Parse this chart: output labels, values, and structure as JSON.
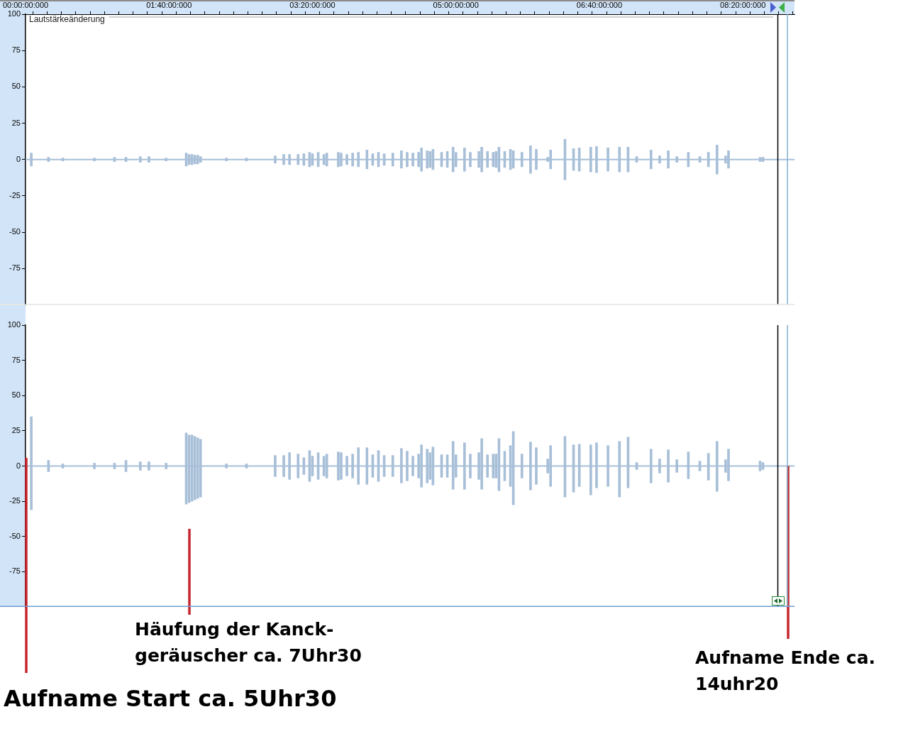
{
  "chart_data": [
    {
      "type": "bar",
      "color": "#a8bfd8",
      "categories": [
        "00:00:00:000",
        null,
        null,
        null,
        null,
        null,
        null,
        null,
        null,
        null,
        null,
        null,
        null,
        null,
        null,
        null,
        null,
        null,
        null,
        null,
        null,
        null,
        null,
        null,
        null,
        null,
        null,
        null,
        null,
        null,
        null,
        null,
        null,
        null,
        null,
        null,
        null,
        null,
        null,
        null,
        null,
        null,
        null,
        null,
        null,
        null,
        null,
        null,
        null,
        null,
        "01:40:00:000",
        null,
        null,
        null,
        null,
        null,
        null,
        null,
        null,
        null,
        null,
        null,
        null,
        null,
        null,
        null,
        null,
        null,
        null,
        null,
        null,
        null,
        null,
        null,
        null,
        null,
        null,
        null,
        null,
        null,
        null,
        null,
        null,
        null,
        null,
        null,
        null,
        null,
        null,
        null,
        null,
        null,
        null,
        null,
        null,
        null,
        null,
        null,
        null,
        null,
        "03:20:00:000",
        null,
        null,
        null,
        null,
        null,
        null,
        null,
        null,
        null,
        null,
        null,
        null,
        null,
        null,
        null,
        null,
        null,
        null,
        null,
        null,
        null,
        null,
        null,
        null,
        null,
        null,
        null,
        null,
        null,
        null,
        null,
        null,
        null,
        null,
        null,
        null,
        null,
        null,
        null,
        null,
        null,
        null,
        null,
        null,
        null,
        null,
        null,
        null,
        null,
        "05:00:00:000",
        null,
        null,
        null,
        null,
        null,
        null,
        null,
        null,
        null,
        null,
        null,
        null,
        null,
        null,
        null,
        null,
        null,
        null,
        null,
        null,
        null,
        null,
        null,
        null,
        null,
        null,
        null,
        null,
        null,
        null,
        null,
        null,
        null,
        null,
        null,
        null,
        null,
        null,
        null,
        null,
        null,
        null,
        null,
        null,
        null,
        null,
        null,
        null,
        null,
        "06:40:00:000",
        null,
        null,
        null,
        null,
        null,
        null,
        null,
        null,
        null,
        null,
        null,
        null,
        null,
        null,
        null,
        null,
        null,
        null,
        null,
        null,
        null,
        null,
        null,
        null,
        null,
        null,
        null,
        null,
        null,
        null,
        null,
        null,
        null,
        null,
        null,
        null,
        null,
        null,
        null,
        null,
        null,
        null,
        null,
        null,
        null,
        null,
        null,
        null,
        null,
        "08:20:00:000",
        null,
        null,
        null,
        null,
        null,
        null,
        null,
        null,
        null,
        null,
        null,
        null,
        null,
        null,
        null,
        null,
        null,
        null
      ],
      "base": [
        null,
        null,
        -4.5,
        null,
        null,
        null,
        null,
        null,
        -1.5,
        null,
        null,
        null,
        null,
        -1,
        null,
        null,
        null,
        null,
        null,
        null,
        null,
        null,
        null,
        null,
        -1,
        null,
        null,
        null,
        null,
        null,
        null,
        -1.5,
        null,
        null,
        null,
        -1.5,
        null,
        null,
        null,
        null,
        -2,
        null,
        null,
        -2,
        null,
        null,
        null,
        null,
        null,
        -1,
        null,
        null,
        null,
        null,
        null,
        null,
        -4.5,
        -3.5,
        -3.5,
        -3,
        -3,
        -2,
        null,
        null,
        null,
        null,
        null,
        null,
        null,
        null,
        -1,
        null,
        null,
        null,
        null,
        null,
        null,
        -1,
        null,
        null,
        null,
        null,
        null,
        null,
        null,
        null,
        null,
        -2.5,
        null,
        null,
        -3.5,
        null,
        -3.5,
        null,
        null,
        -3.5,
        null,
        -4,
        null,
        -5,
        -4,
        null,
        -5,
        null,
        -3.5,
        -4.5,
        null,
        null,
        null,
        -5,
        -4.5,
        null,
        -3.5,
        null,
        -4.5,
        null,
        -5,
        null,
        null,
        -6.5,
        null,
        -4,
        null,
        -5,
        null,
        -4,
        null,
        null,
        -4.5,
        null,
        null,
        -6,
        null,
        -5,
        null,
        -4.5,
        null,
        -5,
        -8,
        null,
        -6,
        -5.5,
        -7,
        null,
        null,
        -5,
        null,
        -5.5,
        null,
        -8.5,
        -5,
        null,
        null,
        -8,
        null,
        -5,
        null,
        null,
        -5.5,
        -8.5,
        null,
        -5.5,
        null,
        -5,
        -5.5,
        -8.5,
        null,
        -5.5,
        null,
        -7,
        -6,
        null,
        null,
        -5,
        null,
        null,
        -9.5,
        null,
        -7,
        null,
        null,
        null,
        -1.5,
        -6.5,
        null,
        null,
        null,
        null,
        -14,
        null,
        null,
        -7.5,
        null,
        -8,
        null,
        null,
        null,
        -8.5,
        null,
        -9,
        null,
        null,
        null,
        -8,
        null,
        null,
        null,
        -8.5,
        null,
        null,
        -8.5,
        null,
        null,
        -2,
        null,
        null,
        null,
        null,
        -6.5,
        null,
        null,
        -2.5,
        null,
        null,
        -6,
        null,
        null,
        -2,
        null,
        null,
        null,
        -5,
        null,
        null,
        null,
        -2,
        null,
        null,
        -5,
        null,
        null,
        -10,
        null,
        null,
        -2.5,
        -6,
        null,
        null,
        null,
        null,
        null,
        null,
        null,
        null,
        null,
        null,
        -1.5,
        -1.5,
        null,
        null,
        null,
        null,
        null,
        null,
        null,
        null,
        null,
        null,
        null
      ],
      "values": [
        null,
        null,
        9,
        null,
        null,
        null,
        null,
        null,
        3,
        null,
        null,
        null,
        null,
        2,
        null,
        null,
        null,
        null,
        null,
        null,
        null,
        null,
        null,
        null,
        2,
        null,
        null,
        null,
        null,
        null,
        null,
        3,
        null,
        null,
        null,
        3,
        null,
        null,
        null,
        null,
        4,
        null,
        null,
        4,
        null,
        null,
        null,
        null,
        null,
        2,
        null,
        null,
        null,
        null,
        null,
        null,
        9,
        7,
        7,
        6,
        6,
        4,
        null,
        null,
        null,
        null,
        null,
        null,
        null,
        null,
        2,
        null,
        null,
        null,
        null,
        null,
        null,
        2,
        null,
        null,
        null,
        null,
        null,
        null,
        null,
        null,
        null,
        5,
        null,
        null,
        7,
        null,
        7,
        null,
        null,
        7,
        null,
        8,
        null,
        10,
        8,
        null,
        10,
        null,
        7,
        9,
        null,
        null,
        null,
        10,
        9,
        null,
        7,
        null,
        9,
        null,
        10,
        null,
        null,
        13,
        null,
        8,
        null,
        10,
        null,
        8,
        null,
        null,
        9,
        null,
        null,
        12,
        null,
        10,
        null,
        9,
        null,
        10,
        16,
        null,
        12,
        11,
        14,
        null,
        null,
        10,
        null,
        11,
        null,
        17,
        10,
        null,
        null,
        16,
        null,
        10,
        null,
        null,
        11,
        17,
        null,
        11,
        null,
        10,
        11,
        17,
        null,
        11,
        null,
        14,
        12,
        null,
        null,
        10,
        null,
        null,
        19,
        null,
        14,
        null,
        null,
        null,
        3,
        13,
        null,
        null,
        null,
        null,
        28,
        null,
        null,
        15,
        null,
        16,
        null,
        null,
        null,
        17,
        null,
        18,
        null,
        null,
        null,
        16,
        null,
        null,
        null,
        17,
        null,
        null,
        17,
        null,
        null,
        4,
        null,
        null,
        null,
        null,
        13,
        null,
        null,
        5,
        null,
        null,
        12,
        null,
        null,
        4,
        null,
        null,
        null,
        10,
        null,
        null,
        null,
        4,
        null,
        null,
        10,
        null,
        null,
        20,
        null,
        null,
        5,
        12,
        null,
        null,
        null,
        null,
        null,
        null,
        null,
        null,
        null,
        null,
        3,
        3,
        null,
        null,
        null,
        null,
        null,
        null,
        null,
        null,
        null,
        null,
        null
      ],
      "ylim": [
        -100,
        100
      ],
      "yticks": [
        100,
        75,
        50,
        25,
        0,
        -25,
        -50,
        -75
      ],
      "ref_lines": [
        {
          "axis": "y",
          "value": 0,
          "color": "#a8bfd8"
        },
        {
          "axis": "y",
          "value": 98,
          "label": "Lautstärkeänderung",
          "color": "#d0d0d0"
        }
      ]
    },
    {
      "type": "bar",
      "color": "#a8bfd8",
      "tick_labels": "y",
      "categories": [
        null,
        null,
        null,
        null,
        null,
        null,
        null,
        null,
        null,
        null,
        null,
        null,
        null,
        null,
        null,
        null,
        null,
        null,
        null,
        null,
        null,
        null,
        null,
        null,
        null,
        null,
        null,
        null,
        null,
        null,
        null,
        null,
        null,
        null,
        null,
        null,
        null,
        null,
        null,
        null,
        null,
        null,
        null,
        null,
        null,
        null,
        null,
        null,
        null,
        null,
        null,
        null,
        null,
        null,
        null,
        null,
        null,
        null,
        null,
        null,
        null,
        null,
        null,
        null,
        null,
        null,
        null,
        null,
        null,
        null,
        null,
        null,
        null,
        null,
        null,
        null,
        null,
        null,
        null,
        null,
        null,
        null,
        null,
        null,
        null,
        null,
        null,
        null,
        null,
        null,
        null,
        null,
        null,
        null,
        null,
        null,
        null,
        null,
        null,
        null,
        null,
        null,
        null,
        null,
        null,
        null,
        null,
        null,
        null,
        null,
        null,
        null,
        null,
        null,
        null,
        null,
        null,
        null,
        null,
        null,
        null,
        null,
        null,
        null,
        null,
        null,
        null,
        null,
        null,
        null,
        null,
        null,
        null,
        null,
        null,
        null,
        null,
        null,
        null,
        null,
        null,
        null,
        null,
        null,
        null,
        null,
        null,
        null,
        null,
        null,
        null,
        null,
        null,
        null,
        null,
        null,
        null,
        null,
        null,
        null,
        null,
        null,
        null,
        null,
        null,
        null,
        null,
        null,
        null,
        null,
        null,
        null,
        null,
        null,
        null,
        null,
        null,
        null,
        null,
        null,
        null,
        null,
        null,
        null,
        null,
        null,
        null,
        null,
        null,
        null,
        null,
        null,
        null,
        null,
        null,
        null,
        null,
        null,
        null,
        null,
        null,
        null,
        null,
        null,
        null,
        null,
        null,
        null,
        null,
        null,
        null,
        null,
        null,
        null,
        null,
        null,
        null,
        null,
        null,
        null,
        null,
        null,
        null,
        null,
        null,
        null,
        null,
        null,
        null,
        null,
        null,
        null,
        null,
        null,
        null,
        null,
        null,
        null,
        null,
        null,
        null,
        null,
        null,
        null,
        null,
        null,
        null,
        null,
        null,
        null,
        null,
        null,
        null,
        null,
        null,
        null,
        null,
        null,
        null,
        null,
        null,
        null,
        null,
        null,
        null,
        null,
        null,
        null,
        null
      ],
      "base": [
        null,
        null,
        -31,
        null,
        null,
        null,
        null,
        null,
        -4,
        null,
        null,
        null,
        null,
        -1.5,
        null,
        null,
        null,
        null,
        null,
        null,
        null,
        null,
        null,
        null,
        -2,
        null,
        null,
        null,
        null,
        null,
        null,
        -2,
        null,
        null,
        null,
        -4,
        null,
        null,
        null,
        null,
        -3,
        null,
        null,
        -3,
        null,
        null,
        null,
        null,
        null,
        -2,
        null,
        null,
        null,
        null,
        null,
        null,
        -27,
        -26,
        -25,
        -24,
        -23,
        -22,
        null,
        null,
        null,
        null,
        null,
        null,
        null,
        null,
        -1.5,
        null,
        null,
        null,
        null,
        null,
        null,
        -1.5,
        null,
        null,
        null,
        null,
        null,
        null,
        null,
        null,
        null,
        -7.5,
        null,
        null,
        -7.5,
        null,
        -9.5,
        null,
        null,
        -8.5,
        null,
        -6,
        null,
        -11,
        -7,
        null,
        -9.5,
        null,
        -7,
        -8.5,
        null,
        null,
        null,
        -10,
        -9.5,
        null,
        -7,
        null,
        -8.5,
        null,
        -13,
        null,
        null,
        -13,
        null,
        -8,
        null,
        -11,
        null,
        -7.5,
        null,
        null,
        -7.5,
        null,
        null,
        -12,
        null,
        -10.5,
        null,
        -7,
        null,
        -8.5,
        -15,
        null,
        -12,
        -9.5,
        -13.5,
        null,
        null,
        -8,
        null,
        -8,
        null,
        -16.5,
        -8,
        null,
        null,
        -16.5,
        null,
        -8.5,
        null,
        null,
        -9.5,
        -16.5,
        null,
        -8,
        null,
        -8.5,
        -8.5,
        -17.5,
        null,
        -10.5,
        null,
        -14.5,
        -27.5,
        null,
        null,
        -8.5,
        null,
        null,
        -17,
        null,
        -13,
        null,
        null,
        null,
        -5,
        -14.5,
        null,
        null,
        null,
        null,
        -22,
        null,
        null,
        -18.5,
        null,
        -14.5,
        null,
        null,
        null,
        -20.5,
        null,
        -15.5,
        null,
        null,
        null,
        -14.5,
        null,
        null,
        null,
        -22,
        null,
        null,
        -15.5,
        null,
        null,
        -2.5,
        null,
        null,
        null,
        null,
        -12,
        null,
        null,
        -5,
        null,
        null,
        -11.5,
        null,
        null,
        -4.5,
        null,
        null,
        null,
        -9,
        null,
        null,
        null,
        -3.5,
        null,
        null,
        -10,
        null,
        null,
        -18,
        null,
        null,
        -4.5,
        -10.5,
        null,
        null,
        null,
        null,
        null,
        null,
        null,
        null,
        null,
        null,
        -3.5,
        -2.5,
        null,
        null,
        null,
        null,
        null,
        null,
        null,
        null,
        null,
        null,
        null
      ],
      "values": [
        null,
        null,
        66,
        null,
        null,
        null,
        null,
        null,
        8,
        null,
        null,
        null,
        null,
        3,
        null,
        null,
        null,
        null,
        null,
        null,
        null,
        null,
        null,
        null,
        4,
        null,
        null,
        null,
        null,
        null,
        null,
        4,
        null,
        null,
        null,
        8,
        null,
        null,
        null,
        null,
        6,
        null,
        null,
        6,
        null,
        null,
        null,
        null,
        null,
        4,
        null,
        null,
        null,
        null,
        null,
        null,
        50.5,
        48,
        47,
        45,
        43,
        41,
        null,
        null,
        null,
        null,
        null,
        null,
        null,
        null,
        3,
        null,
        null,
        null,
        null,
        null,
        null,
        3,
        null,
        null,
        null,
        null,
        null,
        null,
        null,
        null,
        null,
        15,
        null,
        null,
        15,
        null,
        19,
        null,
        null,
        17,
        null,
        12,
        null,
        22,
        14,
        null,
        19,
        null,
        14,
        17,
        null,
        null,
        null,
        20,
        19,
        null,
        14,
        null,
        17,
        null,
        26,
        null,
        null,
        26,
        null,
        16,
        null,
        22,
        null,
        15,
        null,
        null,
        15,
        null,
        null,
        24.5,
        null,
        21,
        null,
        14,
        null,
        17,
        30,
        null,
        24,
        19,
        27,
        null,
        null,
        16,
        null,
        16,
        null,
        34,
        16,
        null,
        null,
        33,
        null,
        17,
        null,
        null,
        19,
        36,
        null,
        16,
        null,
        17,
        17,
        37,
        null,
        21,
        null,
        29,
        52,
        null,
        null,
        17,
        null,
        null,
        34,
        null,
        26,
        null,
        null,
        null,
        10,
        29,
        null,
        null,
        null,
        null,
        43,
        null,
        null,
        33.5,
        null,
        30,
        null,
        null,
        null,
        35.5,
        null,
        32,
        null,
        null,
        null,
        29,
        null,
        null,
        null,
        39.5,
        null,
        null,
        36,
        null,
        null,
        5,
        null,
        null,
        null,
        null,
        24,
        null,
        null,
        10,
        null,
        null,
        23,
        null,
        null,
        9,
        null,
        null,
        null,
        19,
        null,
        null,
        null,
        7,
        null,
        null,
        19,
        null,
        null,
        35.5,
        null,
        null,
        9,
        22.5,
        null,
        null,
        null,
        null,
        null,
        null,
        null,
        null,
        null,
        null,
        7,
        5,
        null,
        null,
        null,
        null,
        null,
        null,
        null,
        null,
        null,
        null,
        null
      ],
      "ylim": [
        -100,
        100
      ],
      "yticks": [
        100,
        75,
        50,
        25,
        0,
        -25,
        -50,
        -75
      ],
      "ref_lines": [
        {
          "axis": "y",
          "value": 0,
          "color": "#a8bfd8"
        }
      ],
      "annotations": [
        "Aufname Start ca. 5Uhr30",
        "Häufung der Kanck-geräuscher ca. 7Uhr30",
        {
          "text": "Aufname Ende ca. 14uhr20",
          "y": 0
        }
      ]
    }
  ]
}
